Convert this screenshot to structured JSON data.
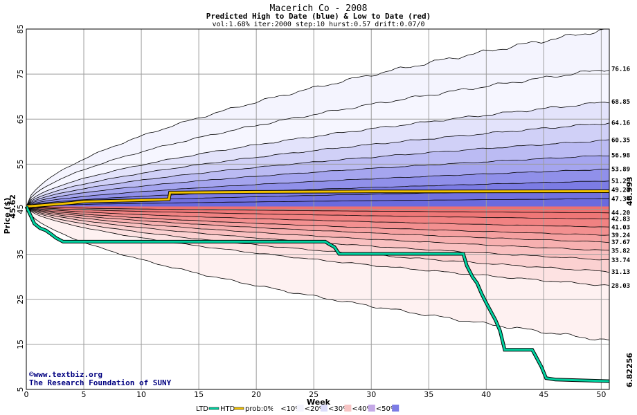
{
  "chart_data": {
    "type": "area",
    "title": "Macerich Co - 2008",
    "subtitle": "Predicted High to Date (blue) &  Low to Date (red)",
    "params": "vol:1.68% iter:2000 step:10 hurst:0.57 drift:0.07/0",
    "xlabel": "Week",
    "ylabel": "Price ($)",
    "xlim": [
      0,
      50.7
    ],
    "ylim": [
      5,
      85
    ],
    "x_ticks": [
      "0",
      "5",
      "10",
      "15",
      "20",
      "25",
      "30",
      "35",
      "40",
      "45",
      "50"
    ],
    "y_ticks": [
      "5",
      "15",
      "25",
      "35",
      "45",
      "55",
      "65",
      "75",
      "85"
    ],
    "grid": true,
    "start_price": 45.62,
    "start_price_label": "45.62",
    "upper_bands": [
      {
        "label": "76.16",
        "end": 76.16
      },
      {
        "label": "68.85",
        "end": 68.85
      },
      {
        "label": "64.16",
        "end": 64.16
      },
      {
        "label": "60.35",
        "end": 60.35
      },
      {
        "label": "56.98",
        "end": 56.98
      },
      {
        "label": "53.89",
        "end": 53.89
      },
      {
        "label": "51.29",
        "end": 51.29
      },
      {
        "label": "49.27",
        "end": 49.27
      },
      {
        "label": "47.34",
        "end": 47.34
      }
    ],
    "lower_bands": [
      {
        "label": "44.20",
        "end": 44.2
      },
      {
        "label": "42.83",
        "end": 42.83
      },
      {
        "label": "41.03",
        "end": 41.03
      },
      {
        "label": "39.24",
        "end": 39.24
      },
      {
        "label": "37.67",
        "end": 37.67
      },
      {
        "label": "35.82",
        "end": 35.82
      },
      {
        "label": "33.74",
        "end": 33.74
      },
      {
        "label": "31.13",
        "end": 31.13
      },
      {
        "label": "28.03",
        "end": 28.03
      }
    ],
    "outer_upper_end": 85,
    "outer_lower_end": 15.8,
    "high_to_date": {
      "name": "HTD",
      "final_label": "48.993",
      "points": [
        [
          0,
          45.62
        ],
        [
          1,
          45.8
        ],
        [
          2,
          46.0
        ],
        [
          4,
          46.4
        ],
        [
          5,
          46.7
        ],
        [
          10,
          47.0
        ],
        [
          12.4,
          47.2
        ],
        [
          12.5,
          48.7
        ],
        [
          20,
          48.85
        ],
        [
          30,
          48.95
        ],
        [
          50.7,
          48.99
        ]
      ]
    },
    "low_to_date": {
      "name": "LTD",
      "final_label": "6.82256",
      "points": [
        [
          0,
          45.62
        ],
        [
          0.3,
          44.0
        ],
        [
          0.7,
          41.8
        ],
        [
          1.2,
          40.8
        ],
        [
          1.7,
          40.3
        ],
        [
          2.2,
          39.4
        ],
        [
          2.6,
          38.6
        ],
        [
          3.2,
          37.8
        ],
        [
          5,
          37.8
        ],
        [
          15,
          37.8
        ],
        [
          22,
          37.8
        ],
        [
          26,
          37.8
        ],
        [
          26.3,
          37.3
        ],
        [
          26.8,
          36.6
        ],
        [
          27.2,
          35.1
        ],
        [
          33,
          35.1
        ],
        [
          38,
          35.1
        ],
        [
          38.3,
          32.5
        ],
        [
          38.8,
          30.0
        ],
        [
          39.2,
          28.6
        ],
        [
          39.6,
          26.2
        ],
        [
          40,
          24.2
        ],
        [
          40.4,
          22.3
        ],
        [
          40.8,
          20.4
        ],
        [
          41.2,
          18.0
        ],
        [
          41.6,
          13.8
        ],
        [
          44,
          13.8
        ],
        [
          44.3,
          12.4
        ],
        [
          44.8,
          10.0
        ],
        [
          45.2,
          7.5
        ],
        [
          46,
          7.2
        ],
        [
          50.7,
          6.82
        ]
      ]
    },
    "legend": {
      "ltd": "LTD",
      "htd": "HTD",
      "items": [
        "prob:0%",
        "<10%",
        "<20%",
        "<30%",
        "<40%",
        "<50%"
      ]
    },
    "colors": {
      "background": "#ffffff",
      "grid": "#9b9b9b",
      "band_line": "#000000",
      "htd": "#f2c200",
      "ltd": "#00d2a0",
      "htd_label": "#8a6d00",
      "ltd_label": "#009070",
      "blue_shades": [
        "#f6f6ff",
        "#e3e3fb",
        "#d0d0f7",
        "#bbbbf3",
        "#a5a5ef",
        "#9090ea",
        "#7c7ce5",
        "#7171e0",
        "#6a6ade"
      ],
      "red_shades": [
        "#fde2e2",
        "#fbd1d1",
        "#f9c0c0",
        "#f7b0b0",
        "#f5a0a0",
        "#f39090",
        "#f18282",
        "#ef7777",
        "#ee7070"
      ],
      "outer_blue": "#f4f4fe",
      "outer_red": "#fef1f1",
      "credit": "#000080"
    }
  },
  "credits": {
    "line1": "©www.textbiz.org",
    "line2": "The Research Foundation of SUNY"
  }
}
